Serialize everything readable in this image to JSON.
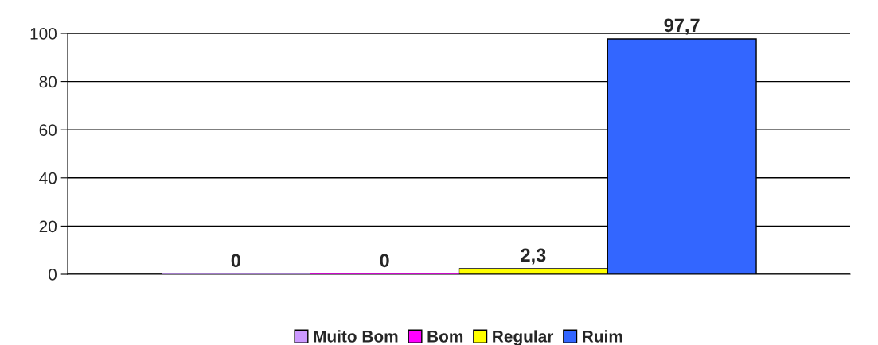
{
  "chart_data": {
    "type": "bar",
    "categories": [
      null
    ],
    "series": [
      {
        "name": "Muito Bom",
        "color": "#cc99ff",
        "values": [
          0
        ],
        "value_labels": [
          "0"
        ]
      },
      {
        "name": "Bom",
        "color": "#ff00ff",
        "values": [
          0
        ],
        "value_labels": [
          "0"
        ]
      },
      {
        "name": "Regular",
        "color": "#ffff00",
        "values": [
          2.3
        ],
        "value_labels": [
          "2,3"
        ]
      },
      {
        "name": "Ruim",
        "color": "#3366ff",
        "values": [
          97.7
        ],
        "value_labels": [
          "97,7"
        ]
      }
    ],
    "ylim": [
      0,
      100
    ],
    "yticks": [
      0,
      20,
      40,
      60,
      80,
      100
    ],
    "grid": "y",
    "legend": "bottom"
  }
}
